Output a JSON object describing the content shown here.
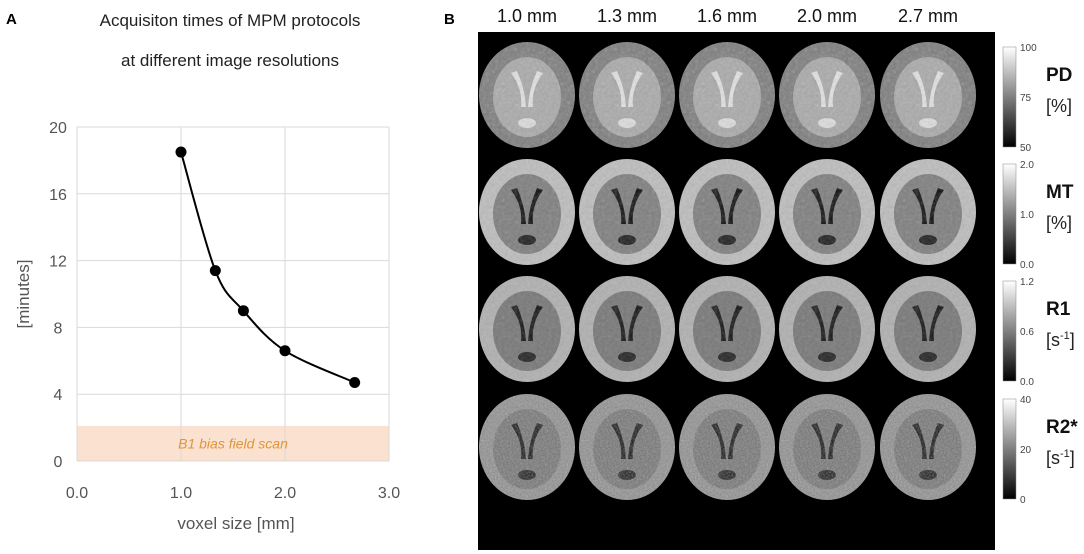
{
  "panel_a_letter": "A",
  "panel_b_letter": "B",
  "chart_data": [
    {
      "type": "line",
      "title_line1": "Acquisiton times of MPM protocols",
      "title_line2": "at different image resolutions",
      "xlabel": "voxel size [mm]",
      "ylabel": "[minutes]",
      "xlim": [
        0,
        3
      ],
      "ylim": [
        0,
        20
      ],
      "x_ticks": [
        "0.0",
        "1.0",
        "2.0",
        "3.0"
      ],
      "y_ticks": [
        "0",
        "4",
        "8",
        "12",
        "16",
        "20"
      ],
      "grid": true,
      "x": [
        1.0,
        1.33,
        1.6,
        2.0,
        2.67
      ],
      "y": [
        18.5,
        11.4,
        9.0,
        6.6,
        4.7
      ],
      "band": {
        "label": "B1 bias field scan",
        "y_from": 0,
        "y_to": 2.1,
        "color": "#fbe1cf",
        "text_color": "#e0953a"
      },
      "line_color": "#000000"
    },
    {
      "type": "heatmap",
      "columns": [
        "1.0 mm",
        "1.3 mm",
        "1.6 mm",
        "2.0 mm",
        "2.7 mm"
      ],
      "rows": [
        {
          "label": "PD",
          "unit": "[%]",
          "cb_ticks": [
            "100",
            "75",
            "50"
          ]
        },
        {
          "label": "MT",
          "unit": "[%]",
          "cb_ticks": [
            "2.0",
            "1.0",
            "0.0"
          ]
        },
        {
          "label": "R1",
          "unit_base": "[s",
          "unit_sup": "-1",
          "unit_end": "]",
          "cb_ticks": [
            "1.2",
            "0.6",
            "0.0"
          ]
        },
        {
          "label": "R2*",
          "unit_base": "[s",
          "unit_sup": "-1",
          "unit_end": "]",
          "cb_ticks": [
            "40",
            "20",
            "0"
          ]
        }
      ]
    }
  ]
}
